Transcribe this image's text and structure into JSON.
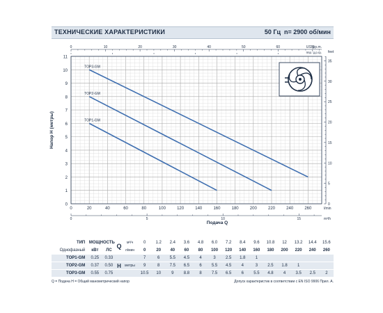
{
  "header": {
    "title": "ТЕХНИЧЕСКИЕ ХАРАКТЕРИСТИКИ",
    "freq": "50 Гц",
    "speed": "n= 2900 об/мин"
  },
  "chart_data": {
    "type": "line",
    "ylabel": "Напор H (метры)",
    "xlabel": "Подача Q",
    "x_unit_bottom": "l/min",
    "x_unit_m3h": "m³/h",
    "x_unit_usgpm": "US g.p.m.",
    "x_unit_impgpm": "Imp. g.p.m.",
    "y_unit_right": "feet",
    "xlim": [
      0,
      275
    ],
    "ylim": [
      0,
      11
    ],
    "x_ticks": [
      "0",
      "20",
      "40",
      "60",
      "80",
      "100",
      "120",
      "140",
      "160",
      "180",
      "200",
      "220",
      "240",
      "260"
    ],
    "y_ticks": [
      "0",
      "1",
      "2",
      "3",
      "4",
      "5",
      "6",
      "7",
      "8",
      "9",
      "10",
      "11"
    ],
    "feet_ticks": [
      "0",
      "5",
      "10",
      "15",
      "20",
      "25",
      "30",
      "35"
    ],
    "m3h_ticks": [
      "0",
      "5",
      "10",
      "15"
    ],
    "usgpm_ticks": [
      "0",
      "10",
      "20",
      "30",
      "40",
      "50",
      "60",
      "70"
    ],
    "impgpm_ticks": [
      "0",
      "10",
      "20",
      "30",
      "40",
      "50",
      "60"
    ],
    "series": [
      {
        "name": "TOP1-GM",
        "x": [
          20,
          160
        ],
        "y": [
          6,
          1
        ]
      },
      {
        "name": "TOP2-GM",
        "x": [
          20,
          220
        ],
        "y": [
          8,
          1
        ]
      },
      {
        "name": "TOP3-GM",
        "x": [
          20,
          260
        ],
        "y": [
          10,
          2
        ]
      }
    ]
  },
  "table": {
    "h_type": "ТИП",
    "h_power": "МОЩНОСТЬ",
    "h_sub": "Однофазный",
    "h_kw": "кВт",
    "h_hp": "ЛС",
    "q_letter": "Q",
    "h_letter": "H",
    "unit_m3h": "м³/ч",
    "unit_lmin": "л/мин",
    "unit_m": "метры",
    "q_m3h": [
      "0",
      "1.2",
      "2.4",
      "3.6",
      "4.8",
      "6.0",
      "7.2",
      "8.4",
      "9.6",
      "10.8",
      "12",
      "13.2",
      "14.4",
      "15.6"
    ],
    "q_lmin": [
      "0",
      "20",
      "40",
      "60",
      "80",
      "100",
      "120",
      "140",
      "160",
      "180",
      "200",
      "220",
      "240",
      "260"
    ],
    "rows": [
      {
        "model": "TOP1-GM",
        "kw": "0.25",
        "hp": "0.33",
        "h": [
          "7",
          "6",
          "5.5",
          "4.5",
          "4",
          "3",
          "2.5",
          "1.8",
          "1",
          "",
          "",
          "",
          "",
          ""
        ]
      },
      {
        "model": "TOP2-GM",
        "kw": "0.37",
        "hp": "0.50",
        "h": [
          "9",
          "8",
          "7.5",
          "6.5",
          "6",
          "5.5",
          "4.5",
          "4",
          "3",
          "2.5",
          "1.8",
          "1",
          "",
          ""
        ]
      },
      {
        "model": "TOP3-GM",
        "kw": "0.55",
        "hp": "0.75",
        "h": [
          "10.5",
          "10",
          "9",
          "8.8",
          "8",
          "7.5",
          "6.5",
          "6",
          "5.5",
          "4.8",
          "4",
          "3.5",
          "2.5",
          "2"
        ]
      }
    ]
  },
  "footer": {
    "left": "Q = Подача  H = Общий манометрический напор",
    "right": "Допуск характеристик в соответствии с EN ISO 9906 Прил. A."
  },
  "colors": {
    "curve": "#3f6fb0",
    "grid": "#c4c4c4",
    "header_bg": "#dfe6ee",
    "row_bg": "#e3e9f0"
  },
  "icon": "impeller-icon"
}
